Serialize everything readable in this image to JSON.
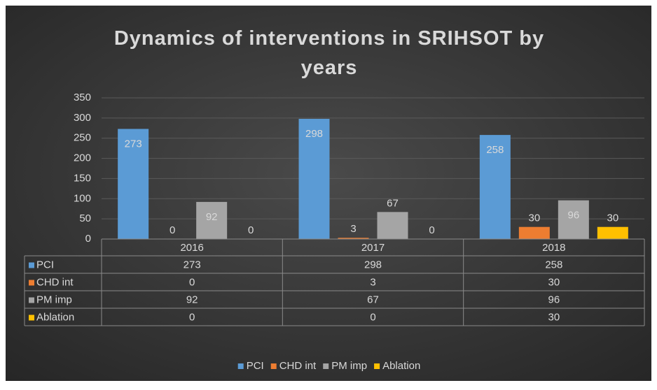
{
  "chart_data": {
    "type": "bar",
    "title": "Dynamics of interventions in SRIHSOT by years",
    "categories": [
      "2016",
      "2017",
      "2018"
    ],
    "series": [
      {
        "name": "PCI",
        "color": "#5b9bd5",
        "values": [
          273,
          298,
          258
        ]
      },
      {
        "name": "CHD int",
        "color": "#ed7d31",
        "values": [
          0,
          3,
          30
        ]
      },
      {
        "name": "PM imp",
        "color": "#a5a5a5",
        "values": [
          92,
          67,
          96
        ]
      },
      {
        "name": "Ablation",
        "color": "#ffc000",
        "values": [
          0,
          0,
          30
        ]
      }
    ],
    "ylim": [
      0,
      350
    ],
    "yticks": [
      0,
      50,
      100,
      150,
      200,
      250,
      300,
      350
    ],
    "grid": true,
    "legend": "bottom",
    "data_table": true
  }
}
